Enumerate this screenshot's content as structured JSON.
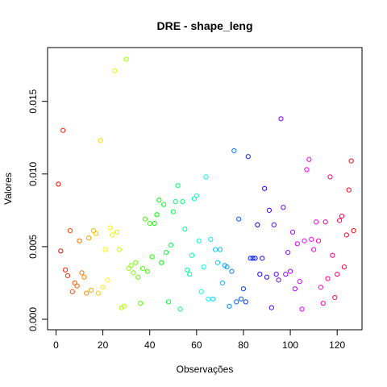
{
  "chart_data": {
    "type": "scatter",
    "title": "DRE - shape_leng",
    "xlabel": "Observações",
    "ylabel": "Valores",
    "xlim": [
      -3.6,
      130.6
    ],
    "ylim": [
      -0.00072,
      0.0187
    ],
    "x_ticks": [
      0,
      20,
      40,
      60,
      80,
      100,
      120
    ],
    "x_tick_labels": [
      "0",
      "20",
      "40",
      "60",
      "80",
      "100",
      "120"
    ],
    "y_ticks": [
      0.0,
      0.005,
      0.01,
      0.015
    ],
    "y_tick_labels": [
      "0.000",
      "0.005",
      "0.010",
      "0.015"
    ],
    "grid": false,
    "legend": false,
    "point_style": "open circle, rainbow colours by observation index",
    "x": [
      1,
      2,
      3,
      4,
      5,
      6,
      7,
      8,
      9,
      10,
      11,
      12,
      13,
      14,
      15,
      16,
      17,
      18,
      19,
      20,
      21,
      22,
      23,
      24,
      25,
      26,
      27,
      28,
      29,
      30,
      31,
      32,
      33,
      34,
      35,
      36,
      37,
      38,
      39,
      40,
      41,
      42,
      43,
      44,
      45,
      46,
      47,
      48,
      49,
      50,
      51,
      52,
      53,
      54,
      55,
      56,
      57,
      58,
      59,
      60,
      61,
      62,
      63,
      64,
      65,
      66,
      67,
      68,
      69,
      70,
      71,
      72,
      73,
      74,
      75,
      76,
      77,
      78,
      79,
      80,
      81,
      82,
      83,
      84,
      85,
      86,
      87,
      88,
      89,
      90,
      91,
      92,
      93,
      94,
      95,
      96,
      97,
      98,
      99,
      100,
      101,
      102,
      103,
      104,
      105,
      106,
      107,
      108,
      109,
      110,
      111,
      112,
      113,
      114,
      115,
      116,
      117,
      118,
      119,
      120,
      121,
      122,
      123,
      124,
      125,
      126,
      127
    ],
    "y": [
      0.0093,
      0.0047,
      0.013,
      0.0034,
      0.003,
      0.0061,
      0.0019,
      0.0025,
      0.0023,
      0.0054,
      0.0032,
      0.0029,
      0.0018,
      0.0056,
      0.002,
      0.0061,
      0.0059,
      0.0018,
      0.0123,
      0.0022,
      0.0048,
      0.0027,
      0.0063,
      0.0058,
      0.0171,
      0.006,
      0.0048,
      0.0008,
      0.0009,
      0.0179,
      0.0035,
      0.0037,
      0.0032,
      0.0039,
      0.0029,
      0.0011,
      0.0035,
      0.0069,
      0.0033,
      0.0066,
      0.0043,
      0.0066,
      0.0072,
      0.0082,
      0.0039,
      0.0079,
      0.0046,
      0.0012,
      0.0051,
      0.0074,
      0.0081,
      0.0092,
      0.0007,
      0.0081,
      0.0062,
      0.0034,
      0.0031,
      0.0044,
      0.0083,
      0.0085,
      0.0054,
      0.0019,
      0.0036,
      0.0098,
      0.0014,
      0.0055,
      0.0014,
      0.0048,
      0.0039,
      0.0048,
      0.0025,
      0.0037,
      0.0036,
      0.0009,
      0.0033,
      0.0116,
      0.0012,
      0.0069,
      0.0014,
      0.0021,
      0.0012,
      0.0112,
      0.0042,
      0.0042,
      0.0042,
      0.0065,
      0.0031,
      0.0042,
      0.009,
      0.0029,
      0.0075,
      0.0008,
      0.0065,
      0.0031,
      0.0027,
      0.0138,
      0.0077,
      0.0031,
      0.0046,
      0.0033,
      0.006,
      0.0021,
      0.0052,
      0.0026,
      0.0007,
      0.0054,
      0.0103,
      0.011,
      0.0055,
      0.0048,
      0.0067,
      0.0054,
      0.0022,
      0.0011,
      0.0067,
      0.0028,
      0.0098,
      0.0044,
      0.0015,
      0.0031,
      0.0068,
      0.0071,
      0.0036,
      0.0058,
      0.0089,
      0.0109,
      0.0061
    ]
  }
}
